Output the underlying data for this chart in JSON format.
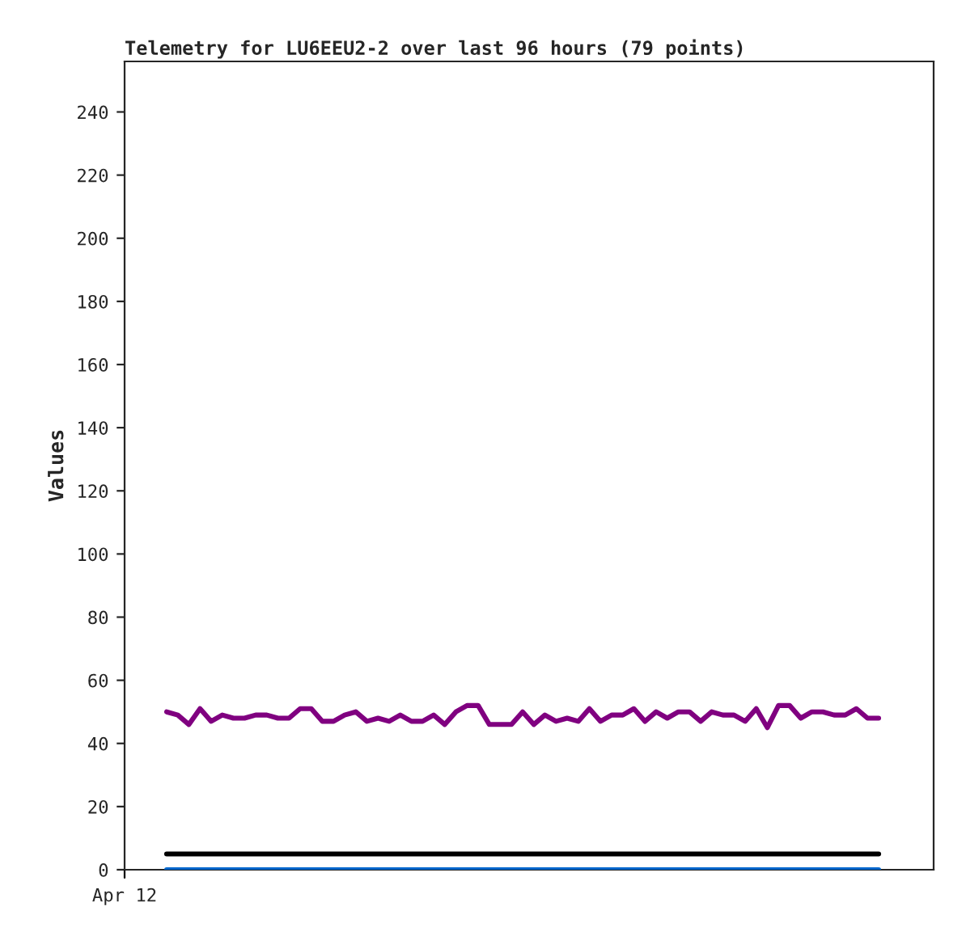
{
  "chart_data": {
    "type": "line",
    "title": "Telemetry for LU6EEU2-2 over last 96 hours (79 points)",
    "ylabel": "Values",
    "annotations": [
      "Apr 12"
    ],
    "categories": [
      null,
      null,
      null,
      null,
      null,
      null,
      null,
      null,
      null,
      null,
      null,
      null,
      null,
      null,
      null,
      null,
      null,
      null,
      null,
      null,
      null,
      null,
      null,
      null,
      null,
      null,
      null,
      null,
      null,
      null,
      null,
      null,
      null,
      null,
      null,
      null,
      null,
      null,
      null,
      null,
      null,
      null,
      null,
      null,
      null,
      null,
      null,
      null,
      null,
      null,
      null,
      null,
      null,
      null,
      null,
      null,
      null,
      null,
      null,
      null,
      null,
      null,
      null,
      null,
      null
    ],
    "ylim": [
      0,
      256
    ],
    "yticks": [
      0,
      20,
      40,
      60,
      80,
      100,
      120,
      140,
      160,
      180,
      200,
      220,
      240
    ],
    "grid": false,
    "legend": false,
    "marker": "none",
    "line_style": "solid",
    "series": [
      {
        "color": "#800080",
        "values": [
          50,
          49,
          46,
          51,
          47,
          49,
          48,
          48,
          49,
          49,
          48,
          48,
          51,
          51,
          47,
          47,
          49,
          50,
          47,
          48,
          47,
          49,
          47,
          47,
          49,
          46,
          50,
          52,
          52,
          46,
          46,
          46,
          50,
          46,
          49,
          47,
          48,
          47,
          51,
          47,
          49,
          49,
          51,
          47,
          50,
          48,
          50,
          50,
          47,
          50,
          49,
          49,
          47,
          51,
          45,
          52,
          52,
          48,
          50,
          50,
          49,
          49,
          51,
          48,
          48
        ]
      },
      {
        "color": "#000000",
        "values": [
          5,
          5,
          5,
          5,
          5,
          5,
          5,
          5,
          5,
          5,
          5,
          5,
          5,
          5,
          5,
          5,
          5,
          5,
          5,
          5,
          5,
          5,
          5,
          5,
          5,
          5,
          5,
          5,
          5,
          5,
          5,
          5,
          5,
          5,
          5,
          5,
          5,
          5,
          5,
          5,
          5,
          5,
          5,
          5,
          5,
          5,
          5,
          5,
          5,
          5,
          5,
          5,
          5,
          5,
          5,
          5,
          5,
          5,
          5,
          5,
          5,
          5,
          5,
          5,
          5
        ]
      },
      {
        "color": "#0066cc",
        "values": [
          0,
          0,
          0,
          0,
          0,
          0,
          0,
          0,
          0,
          0,
          0,
          0,
          0,
          0,
          0,
          0,
          0,
          0,
          0,
          0,
          0,
          0,
          0,
          0,
          0,
          0,
          0,
          0,
          0,
          0,
          0,
          0,
          0,
          0,
          0,
          0,
          0,
          0,
          0,
          0,
          0,
          0,
          0,
          0,
          0,
          0,
          0,
          0,
          0,
          0,
          0,
          0,
          0,
          0,
          0,
          0,
          0,
          0,
          0,
          0,
          0,
          0,
          0,
          0,
          0
        ]
      }
    ]
  }
}
